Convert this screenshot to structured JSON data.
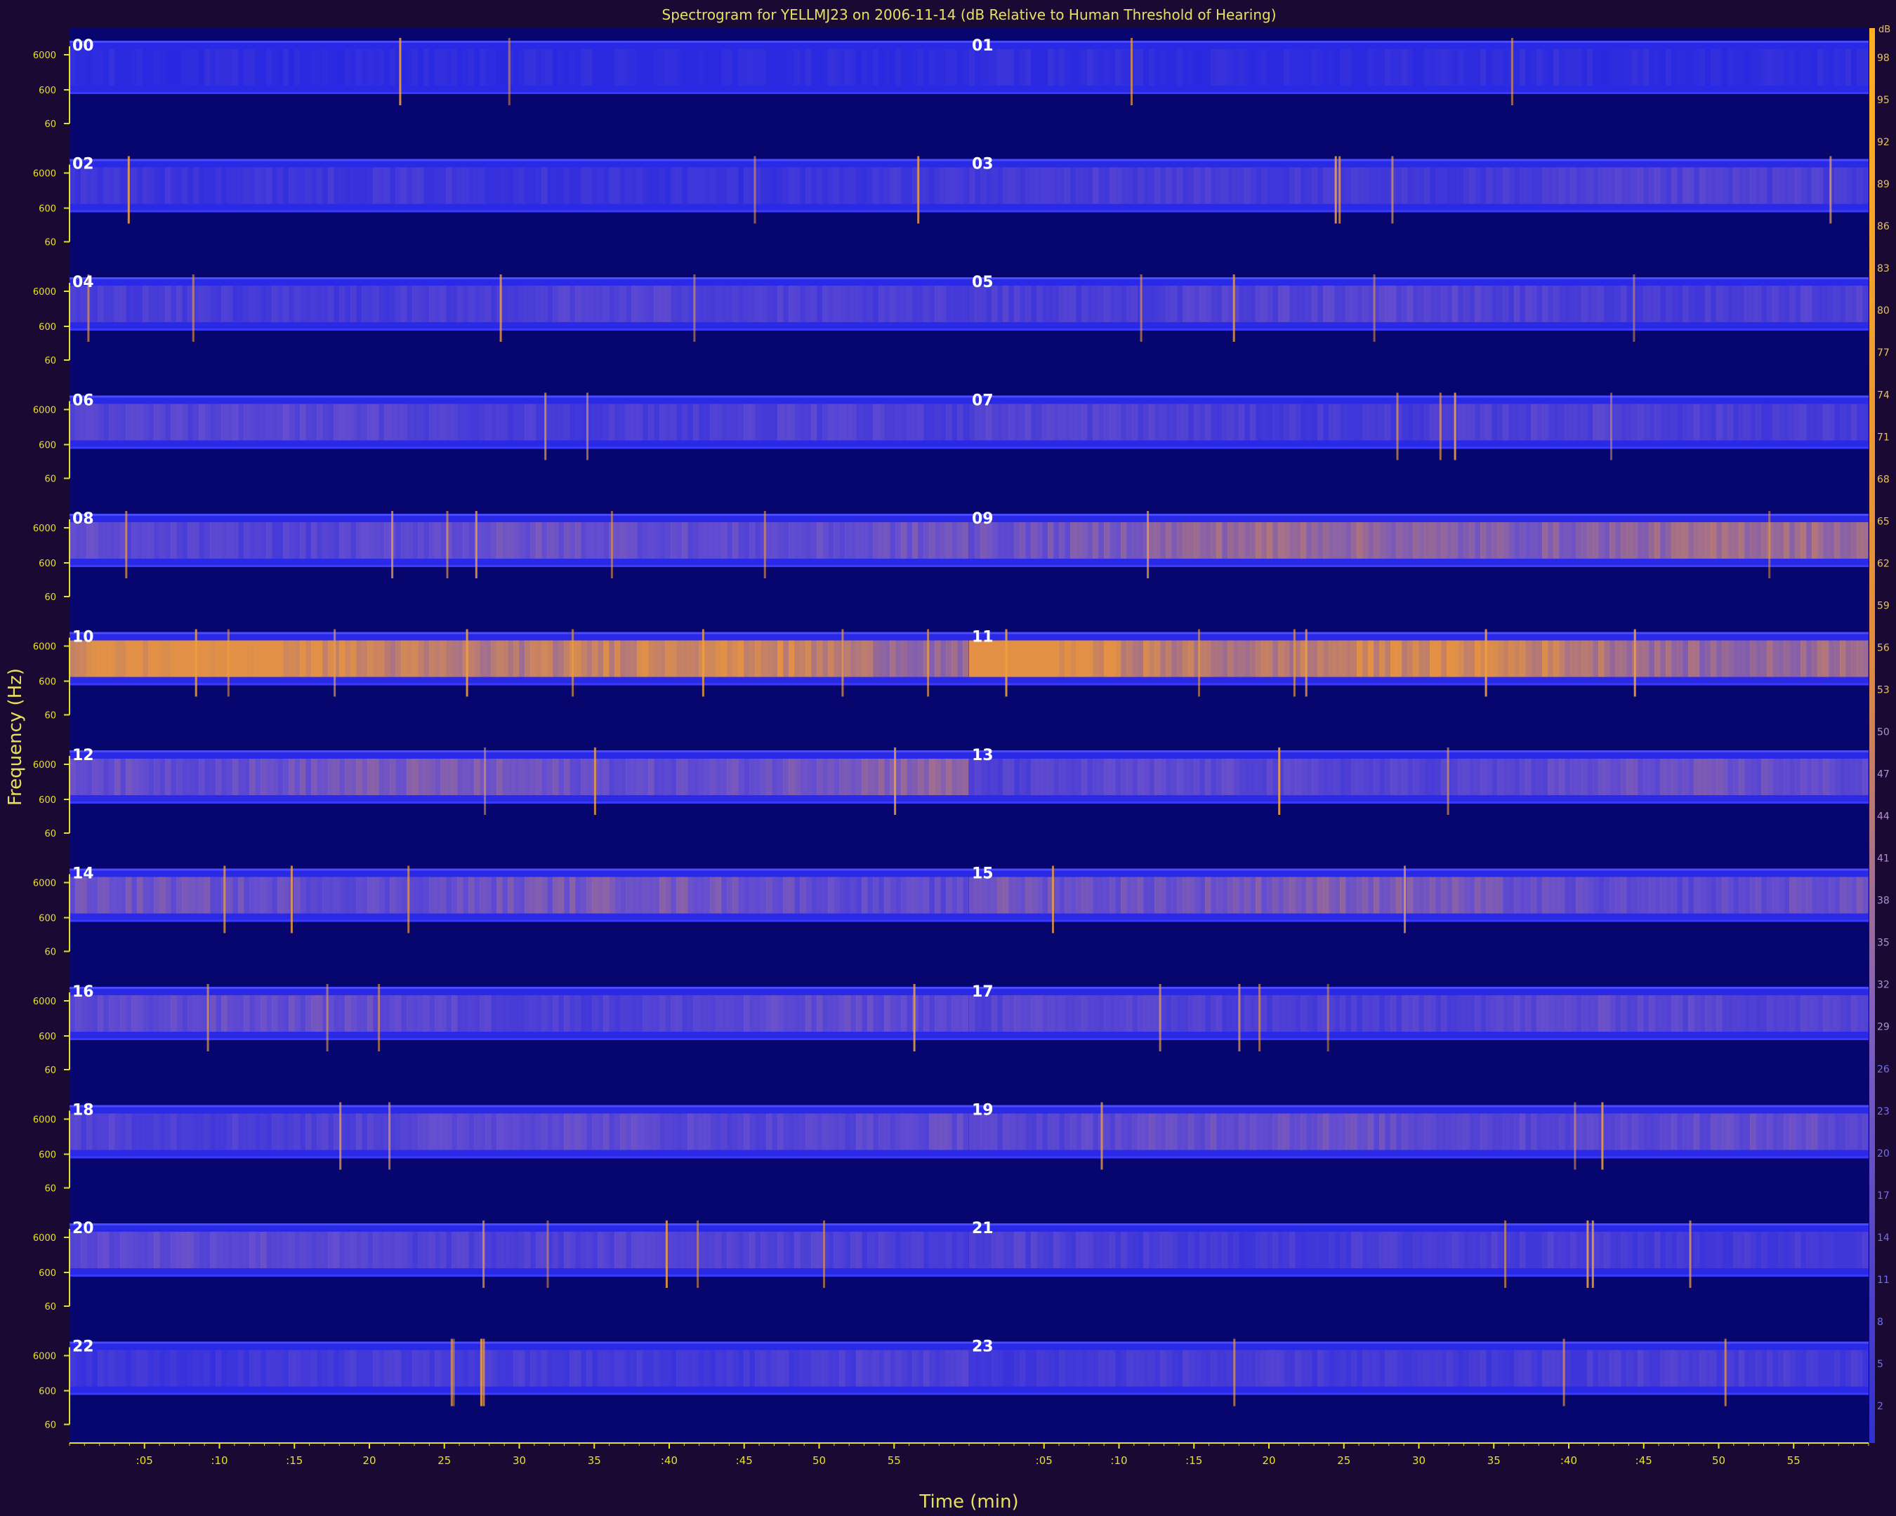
{
  "chart_data": {
    "type": "heatmap",
    "title": "Spectrogram for YELLMJ23 on 2006-11-14 (dB Relative to Human Threshold of Hearing)",
    "xlabel": "Time (min)",
    "ylabel": "Frequency (Hz)",
    "x_ticks": [
      ":05",
      ":10",
      ":15",
      "20",
      "25",
      "30",
      "35",
      ":40",
      ":45",
      "50",
      "55",
      ":05",
      ":10",
      ":15",
      "20",
      "25",
      "30",
      "35",
      ":40",
      ":45",
      "50",
      "55"
    ],
    "y_ticks": [
      "6000",
      "600",
      "60"
    ],
    "panels_per_row": 2,
    "panel_minutes": 60,
    "hour_labels": [
      "00",
      "01",
      "02",
      "03",
      "04",
      "05",
      "06",
      "07",
      "08",
      "09",
      "10",
      "11",
      "12",
      "13",
      "14",
      "15",
      "16",
      "17",
      "18",
      "19",
      "20",
      "21",
      "22",
      "23"
    ],
    "hour_intensity": [
      0.05,
      0.08,
      0.22,
      0.3,
      0.3,
      0.32,
      0.35,
      0.35,
      0.48,
      0.62,
      0.85,
      0.92,
      0.6,
      0.42,
      0.48,
      0.52,
      0.45,
      0.4,
      0.4,
      0.42,
      0.38,
      0.32,
      0.28,
      0.25
    ],
    "colorbar": {
      "unit": "dB",
      "labels": [
        "98",
        "95",
        "92",
        "89",
        "86",
        "83",
        "80",
        "77",
        "74",
        "71",
        "68",
        "65",
        "62",
        "59",
        "56",
        "53",
        "50",
        "47",
        "44",
        "41",
        "38",
        "35",
        "32",
        "29",
        "26",
        "23",
        "20",
        "17",
        "14",
        "11",
        "8",
        "5",
        "2"
      ]
    },
    "grid": false
  }
}
